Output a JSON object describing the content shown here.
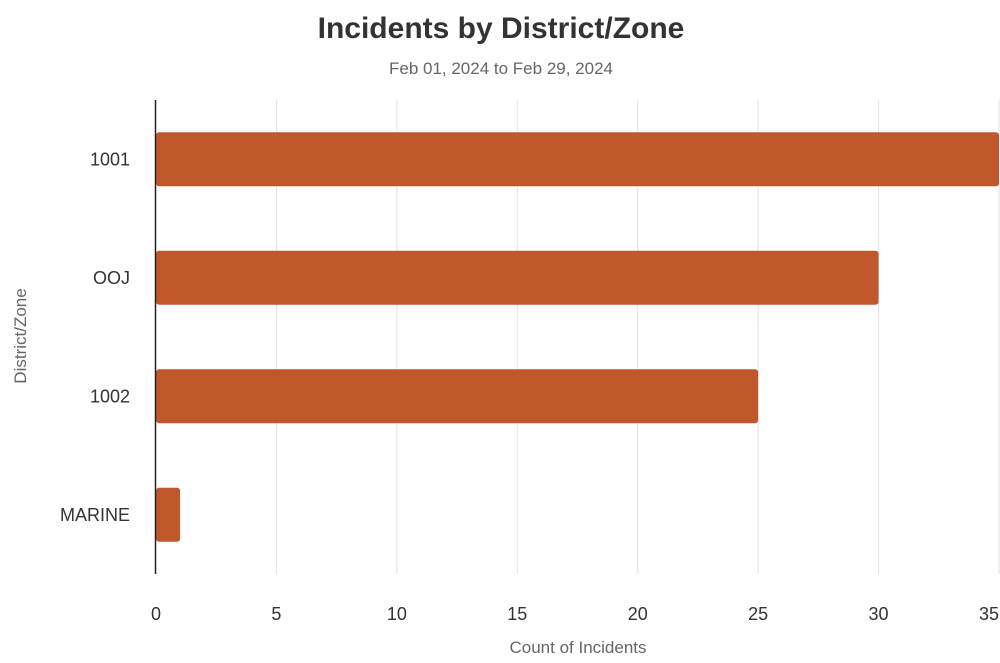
{
  "chart_data": {
    "type": "bar",
    "orientation": "horizontal",
    "title": "Incidents by District/Zone",
    "subtitle": "Feb 01, 2024 to Feb 29, 2024",
    "xlabel": "Count of Incidents",
    "ylabel": "District/Zone",
    "categories": [
      "1001",
      "OOJ",
      "1002",
      "MARINE"
    ],
    "values": [
      35,
      30,
      25,
      1
    ],
    "xlim": [
      0,
      35
    ],
    "xticks": [
      "0",
      "5",
      "10",
      "15",
      "20",
      "25",
      "30",
      "35"
    ],
    "grid": "vertical",
    "legend": "none",
    "bar_color": "#c0582b",
    "grid_color": "#e3e3e3",
    "axis_color": "#222222"
  }
}
